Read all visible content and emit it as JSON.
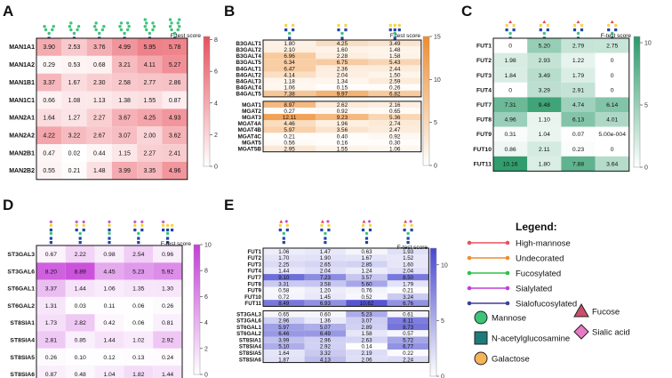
{
  "chart_data": [
    {
      "panel": "A",
      "type": "heatmap",
      "colormap": "red",
      "vmax": 8.2,
      "cbar_ticks": [
        0,
        2,
        4,
        6,
        8
      ],
      "cbar_label": "F-test score",
      "rows": [
        "MAN1A1",
        "MAN1A2",
        "MAN1B1",
        "MAN1C1",
        "MAN2A1",
        "MAN2A2",
        "MAN2B1",
        "MAN2B2"
      ],
      "values": [
        [
          "3.90",
          "2.53",
          "3.76",
          "4.99",
          "5.95",
          "5.78"
        ],
        [
          "0.29",
          "0.53",
          "0.68",
          "3.21",
          "4.11",
          "5.27"
        ],
        [
          "3.37",
          "1.67",
          "2.30",
          "2.58",
          "2.77",
          "2.86"
        ],
        [
          "0.66",
          "1.08",
          "1.13",
          "1.38",
          "1.55",
          "0.87"
        ],
        [
          "1.64",
          "1.27",
          "2.27",
          "3.67",
          "4.25",
          "4.93"
        ],
        [
          "4.22",
          "3.22",
          "2.67",
          "3.07",
          "2.00",
          "3.62"
        ],
        [
          "0.47",
          "0.02",
          "0.44",
          "1.15",
          "2.27",
          "2.41"
        ],
        [
          "0.55",
          "0.21",
          "1.48",
          "3.99",
          "3.35",
          "4.96"
        ]
      ]
    },
    {
      "panel": "B",
      "type": "heatmap",
      "colormap": "orange",
      "vmax": 15,
      "cbar_ticks": [
        0,
        5,
        10,
        15
      ],
      "cbar_label": "F-test score",
      "groups": [
        {
          "rows": [
            "B3GALT1",
            "B3GALT2",
            "B3GALT4",
            "B3GALT5",
            "B4GALT1",
            "B4GALT2",
            "B4GALT3",
            "B4GALT4",
            "B4GALT5"
          ],
          "values": [
            [
              "1.80",
              "4.25",
              "3.49"
            ],
            [
              "2.10",
              "1.60",
              "1.48"
            ],
            [
              "6.96",
              "2.28",
              "1.58"
            ],
            [
              "6.34",
              "6.75",
              "5.43"
            ],
            [
              "6.47",
              "2.36",
              "2.44"
            ],
            [
              "4.14",
              "2.04",
              "1.50"
            ],
            [
              "1.18",
              "1.34",
              "2.59"
            ],
            [
              "1.06",
              "0.15",
              "0.26"
            ],
            [
              "7.38",
              "9.97",
              "6.82"
            ]
          ]
        },
        {
          "rows": [
            "MGAT1",
            "MGAT2",
            "MGAT3",
            "MGAT4A",
            "MGAT4B",
            "MGAT4C",
            "MGAT5",
            "MGAT5B"
          ],
          "values": [
            [
              "8.97",
              "2.62",
              "2.16"
            ],
            [
              "0.27",
              "0.92",
              "0.65"
            ],
            [
              "12.11",
              "9.23",
              "5.36"
            ],
            [
              "4.46",
              "1.96",
              "2.74"
            ],
            [
              "5.97",
              "3.56",
              "2.47"
            ],
            [
              "0.21",
              "0.40",
              "0.92"
            ],
            [
              "0.56",
              "0.16",
              "0.30"
            ],
            [
              "2.95",
              "1.55",
              "1.06"
            ]
          ]
        }
      ]
    },
    {
      "panel": "C",
      "type": "heatmap",
      "colormap": "green",
      "vmax": 10.5,
      "cbar_ticks": [
        0,
        5,
        10
      ],
      "cbar_label": "F-test score",
      "rows": [
        "FUT1",
        "FUT2",
        "FUT3",
        "FUT4",
        "FUT7",
        "FUT8",
        "FUT9",
        "FUT10",
        "FUT11"
      ],
      "values": [
        [
          "0",
          "5.20",
          "2.79",
          "2.75"
        ],
        [
          "1.98",
          "2.93",
          "1.22",
          "0"
        ],
        [
          "1.84",
          "3.49",
          "1.79",
          "0"
        ],
        [
          "0",
          "3.29",
          "2.91",
          "0"
        ],
        [
          "7.31",
          "9.48",
          "4.74",
          "6.14"
        ],
        [
          "4.96",
          "1.10",
          "6.13",
          "4.01"
        ],
        [
          "0.31",
          "1.04",
          "0.07",
          "5.00e-004"
        ],
        [
          "0.86",
          "2.11",
          "0.23",
          "0"
        ],
        [
          "10.16",
          "1.80",
          "7.88",
          "3.64"
        ]
      ]
    },
    {
      "panel": "D",
      "type": "heatmap",
      "colormap": "purple",
      "vmax": 10,
      "cbar_ticks": [
        0,
        2,
        4,
        6,
        8,
        10
      ],
      "cbar_label": "F-test score",
      "rows": [
        "ST3GAL3",
        "ST3GAL6",
        "ST6GAL1",
        "ST6GAL2",
        "ST8SIA1",
        "ST8SIA4",
        "ST8SIA5",
        "ST8SIA6"
      ],
      "values": [
        [
          "0.67",
          "2.22",
          "0.98",
          "2.54",
          "0.96"
        ],
        [
          "8.20",
          "8.89",
          "4.45",
          "5.23",
          "5.92"
        ],
        [
          "3.37",
          "1.44",
          "1.06",
          "1.35",
          "1.30"
        ],
        [
          "1.31",
          "0.03",
          "0.11",
          "0.06",
          "0.26"
        ],
        [
          "1.73",
          "2.82",
          "0.42",
          "0.06",
          "0.81"
        ],
        [
          "2.81",
          "0.85",
          "1.44",
          "1.02",
          "2.92"
        ],
        [
          "0.26",
          "0.10",
          "0.12",
          "0.13",
          "0.24"
        ],
        [
          "0.87",
          "0.48",
          "1.04",
          "1.82",
          "1.44"
        ]
      ]
    },
    {
      "panel": "E",
      "type": "heatmap",
      "colormap": "blue",
      "vmax": 11.5,
      "cbar_ticks": [
        0,
        5,
        10
      ],
      "cbar_label": "F-test score",
      "groups": [
        {
          "rows": [
            "FUT1",
            "FUT2",
            "FUT3",
            "FUT4",
            "FUT7",
            "FUT8",
            "FUT9",
            "FUT10",
            "FUT11"
          ],
          "values": [
            [
              "1.06",
              "1.47",
              "0.63",
              "1.93"
            ],
            [
              "1.70",
              "1.90",
              "1.67",
              "1.52"
            ],
            [
              "2.25",
              "2.65",
              "2.85",
              "1.60"
            ],
            [
              "1.44",
              "2.04",
              "1.24",
              "2.04"
            ],
            [
              "9.10",
              "7.23",
              "3.57",
              "8.50"
            ],
            [
              "3.31",
              "3.58",
              "5.60",
              "1.79"
            ],
            [
              "0.58",
              "1.20",
              "0.76",
              "0.21"
            ],
            [
              "0.72",
              "1.45",
              "0.52",
              "3.24"
            ],
            [
              "8.49",
              "6.93",
              "10.62",
              "6.76"
            ]
          ]
        },
        {
          "rows": [
            "ST3GAL3",
            "ST3GAL6",
            "ST6GAL1",
            "ST6GAL2",
            "ST8SIA1",
            "ST8SIA4",
            "ST8SIA5",
            "ST8SIA6"
          ],
          "values": [
            [
              "0.65",
              "0.60",
              "5.23",
              "0.61"
            ],
            [
              "2.96",
              "1.36",
              "3.07",
              "8.11"
            ],
            [
              "5.97",
              "5.07",
              "2.89",
              "8.73"
            ],
            [
              "6.46",
              "6.49",
              "1.58",
              "0.57"
            ],
            [
              "3.99",
              "2.96",
              "2.63",
              "5.72"
            ],
            [
              "5.10",
              "2.92",
              "0.14",
              "6.77"
            ],
            [
              "1.64",
              "3.32",
              "2.19",
              "0.22"
            ],
            [
              "1.87",
              "4.13",
              "2.06",
              "2.24"
            ]
          ]
        }
      ]
    }
  ],
  "panel_labels": [
    "A",
    "B",
    "C",
    "D",
    "E"
  ],
  "legend": {
    "title": "Legend:",
    "lines": [
      {
        "label": "High-mannose",
        "color": "#e8515c"
      },
      {
        "label": "Undecorated",
        "color": "#ef8c2c"
      },
      {
        "label": "Fucosylated",
        "color": "#2fc14a"
      },
      {
        "label": "Sialylated",
        "color": "#c43ed8"
      },
      {
        "label": "Sialofucosylated",
        "color": "#3d3f9a"
      }
    ],
    "symbols": [
      {
        "label": "Mannose",
        "shape": "circle",
        "color": "#3cc47a"
      },
      {
        "label": "N-acetylglucosamine",
        "shape": "square",
        "color": "#1f7a7a"
      },
      {
        "label": "Galactose",
        "shape": "circle",
        "color": "#f5b45a"
      },
      {
        "label": "Fucose",
        "shape": "triangle",
        "color": "#c8506a"
      },
      {
        "label": "Sialic acid",
        "shape": "diamond",
        "color": "#e77ac5"
      }
    ]
  },
  "colors": {
    "red": "#e8515c",
    "orange": "#ef8c2c",
    "green": "#2a9a6a",
    "purple": "#c43ed8",
    "blue": "#4848d0",
    "mannose": "#3cc47a",
    "glcnac": "#2244aa",
    "galactose": "#f5d442",
    "fucose": "#e0405a",
    "sialic": "#c050d0"
  }
}
